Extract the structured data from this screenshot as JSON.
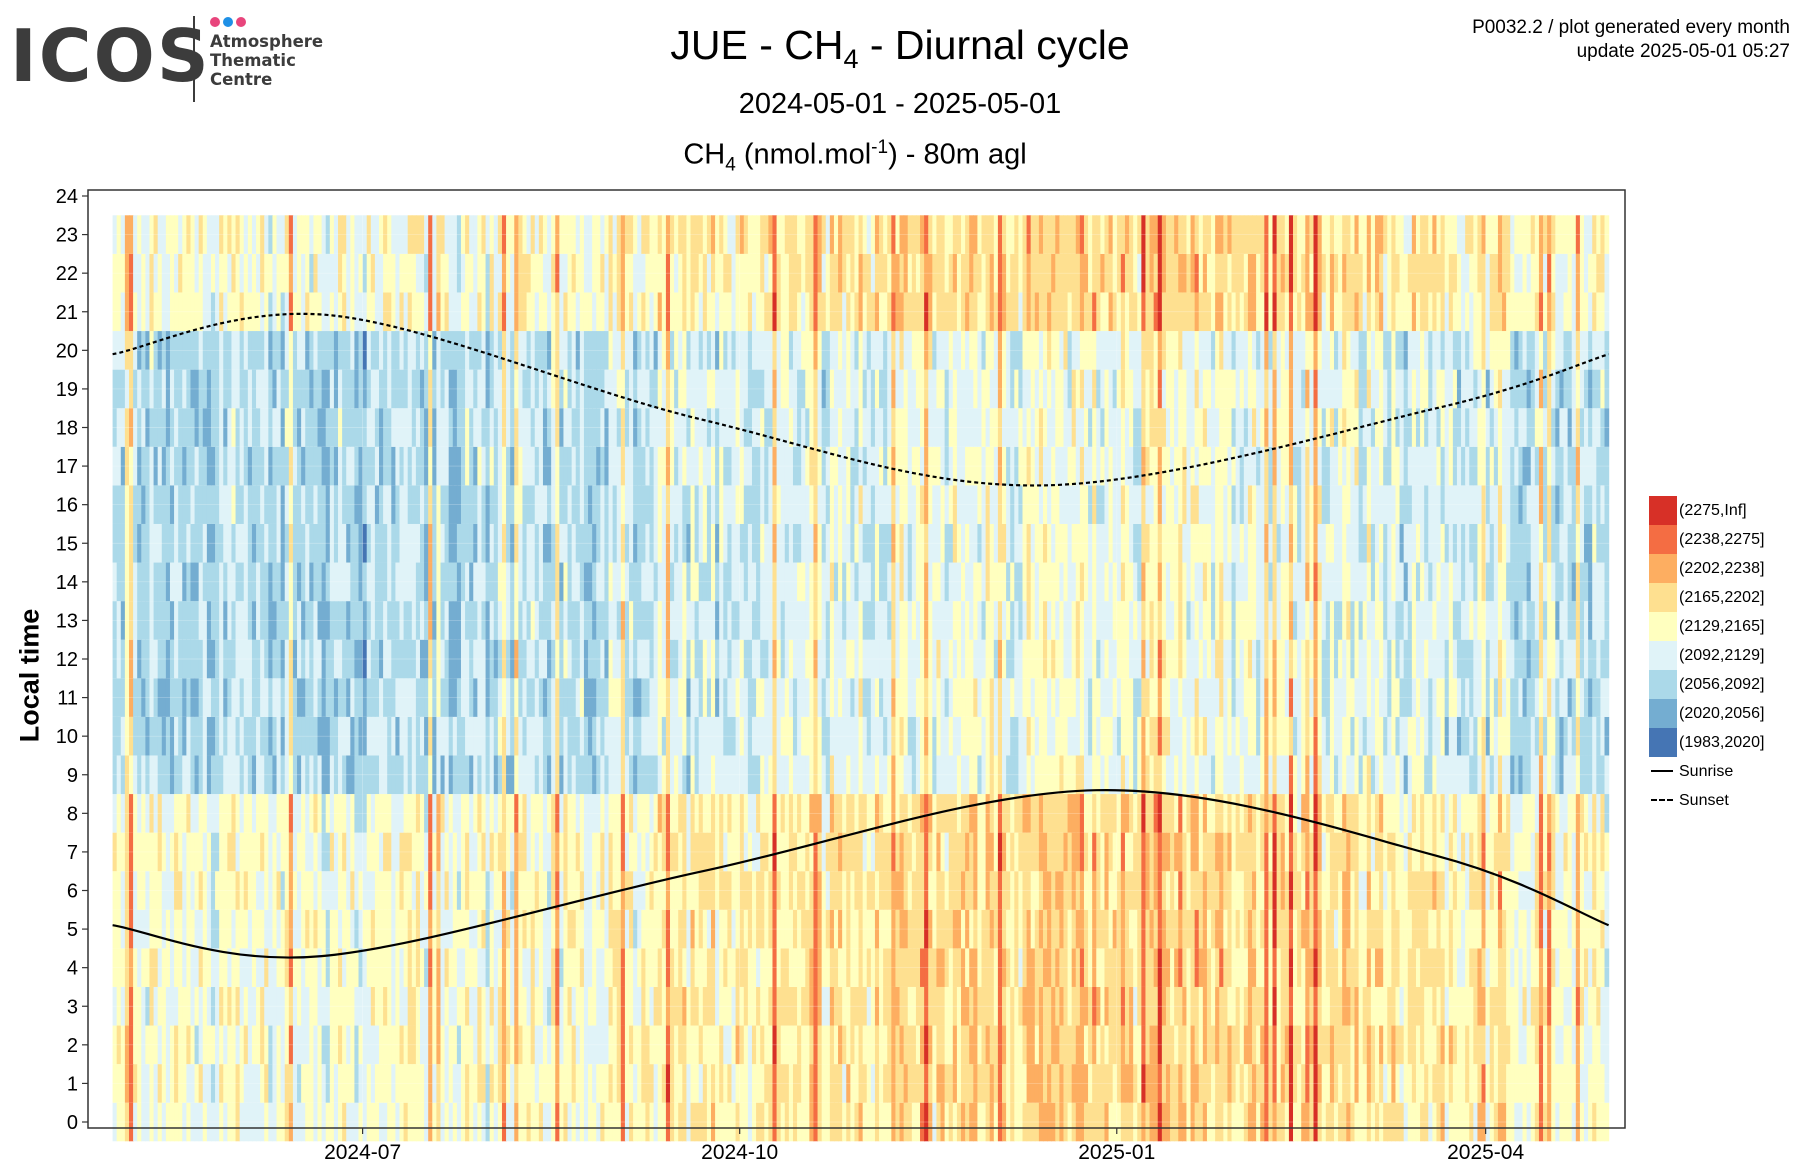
{
  "header": {
    "logo_text": "ICOS",
    "logo_lines": [
      "Atmosphere",
      "Thematic",
      "Centre"
    ],
    "logo_dot_colors": [
      "#e8457c",
      "#1e90e6",
      "#e8457c"
    ],
    "title_prefix": "JUE - CH",
    "title_sub": "4",
    "title_suffix": " - Diurnal cycle",
    "subtitle": "2024-05-01 - 2025-05-01",
    "plot_label_prefix": "CH",
    "plot_label_sub": "4",
    "plot_label_mid": " (nmol.mol",
    "plot_label_sup": "-1",
    "plot_label_suffix": ") - 80m agl",
    "meta_line1": "P0032.2 / plot generated every month",
    "meta_line2": "update  2025-05-01 05:27"
  },
  "chart_data": {
    "type": "heatmap",
    "x_range": [
      "2024-04-25",
      "2025-05-05"
    ],
    "x_ticks": [
      "2024-07",
      "2024-10",
      "2025-01",
      "2025-04"
    ],
    "ylabel": "Local time",
    "ylim": [
      0,
      24
    ],
    "y_ticks": [
      0,
      1,
      2,
      3,
      4,
      5,
      6,
      7,
      8,
      9,
      10,
      11,
      12,
      13,
      14,
      15,
      16,
      17,
      18,
      19,
      20,
      21,
      22,
      23,
      24
    ],
    "grid": true,
    "legend_placement": "right",
    "bins": [
      {
        "label": "(2275,Inf]",
        "color": "#d73027"
      },
      {
        "label": "(2238,2275]",
        "color": "#f46d43"
      },
      {
        "label": "(2202,2238]",
        "color": "#fdae61"
      },
      {
        "label": "(2165,2202]",
        "color": "#fee090"
      },
      {
        "label": "(2129,2165]",
        "color": "#ffffbf"
      },
      {
        "label": "(2092,2129]",
        "color": "#e0f3f8"
      },
      {
        "label": "(2056,2092]",
        "color": "#abd9e9"
      },
      {
        "label": "(2020,2056]",
        "color": "#74add1"
      },
      {
        "label": "(1983,2020]",
        "color": "#4575b4"
      }
    ],
    "lines": [
      {
        "name": "Sunrise",
        "style": "solid",
        "points": [
          [
            "2024-05-01",
            5.1
          ],
          [
            "2024-06-21",
            4.3
          ],
          [
            "2024-09-22",
            6.5
          ],
          [
            "2024-12-27",
            8.6
          ],
          [
            "2025-03-20",
            6.9
          ],
          [
            "2025-05-01",
            5.1
          ]
        ]
      },
      {
        "name": "Sunset",
        "style": "dashed",
        "points": [
          [
            "2024-05-01",
            19.9
          ],
          [
            "2024-06-24",
            20.9
          ],
          [
            "2024-09-22",
            18.2
          ],
          [
            "2024-12-14",
            16.5
          ],
          [
            "2025-03-20",
            18.5
          ],
          [
            "2025-05-01",
            19.9
          ]
        ]
      }
    ]
  }
}
